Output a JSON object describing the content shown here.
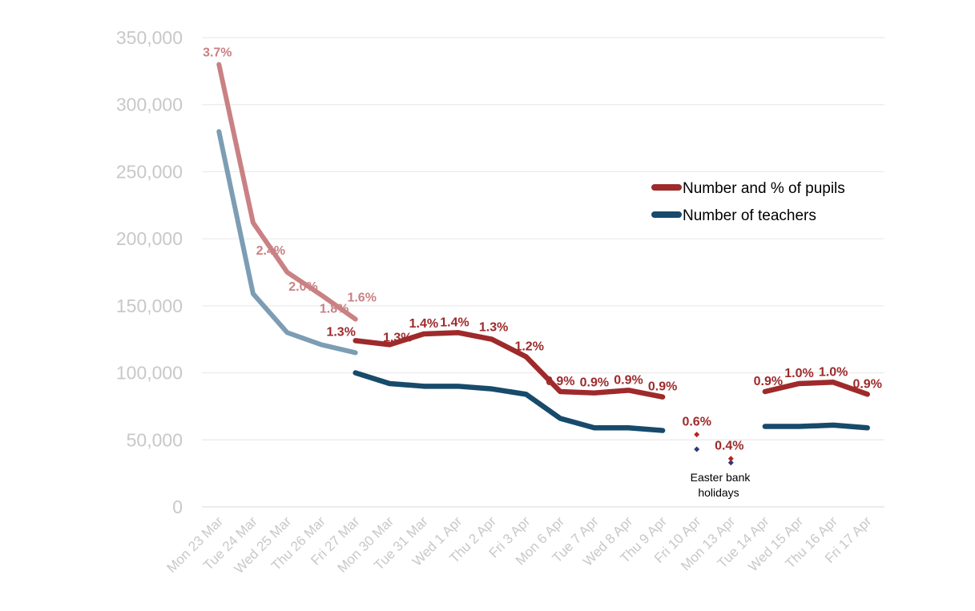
{
  "chart_data": {
    "type": "line",
    "categories": [
      "Mon 23 Mar",
      "Tue 24 Mar",
      "Wed 25 Mar",
      "Thu 26 Mar",
      "Fri 27 Mar",
      "Mon 30 Mar",
      "Tue 31 Mar",
      "Wed 1 Apr",
      "Thu 2 Apr",
      "Fri 3 Apr",
      "Mon 6 Apr",
      "Tue 7 Apr",
      "Wed 8 Apr",
      "Thu 9 Apr",
      "Fri 10 Apr",
      "Mon 13 Apr",
      "Tue 14 Apr",
      "Wed 15 Apr",
      "Thu 16 Apr",
      "Fri 17 Apr"
    ],
    "ylim": [
      0,
      350000
    ],
    "yticks": [
      0,
      50000,
      100000,
      150000,
      200000,
      250000,
      300000,
      350000
    ],
    "ytick_labels": [
      "0",
      "50,000",
      "100,000",
      "150,000",
      "200,000",
      "250,000",
      "300,000",
      "350,000"
    ],
    "grid": true,
    "legend_position": "right",
    "series": [
      {
        "name": "Number and % of pupils",
        "color": "#9e2a2b",
        "faded_color": "#c98184",
        "values": [
          330000,
          212000,
          175000,
          158000,
          124000,
          121000,
          129000,
          130000,
          125000,
          112000,
          86000,
          85000,
          87000,
          82000,
          54000,
          36000,
          86000,
          92000,
          93000,
          84000
        ],
        "pct_labels": [
          "3.7%",
          "2.4%",
          "2.0%",
          "1.8%",
          "1.3%",
          "1.3%",
          "1.4%",
          "1.4%",
          "1.3%",
          "1.2%",
          "0.9%",
          "0.9%",
          "0.9%",
          "0.9%",
          "0.6%",
          "0.4%",
          "0.9%",
          "1.0%",
          "1.0%",
          "0.9%"
        ]
      },
      {
        "name": "Number of teachers",
        "color": "#174a6b",
        "faded_color": "#7c9db4",
        "values": [
          280000,
          159000,
          130000,
          121000,
          100000,
          92000,
          90000,
          90000,
          88000,
          84000,
          66000,
          59000,
          59000,
          57000,
          43000,
          33000,
          60000,
          60000,
          61000,
          59000
        ]
      }
    ],
    "segments": [
      [
        0,
        4
      ],
      [
        4,
        13
      ],
      [
        16,
        19
      ]
    ],
    "marker_points": [
      14,
      15
    ],
    "faded_label_for_pupils_fri_27_mar": "1.6%",
    "annotation": "Easter bank holidays"
  }
}
